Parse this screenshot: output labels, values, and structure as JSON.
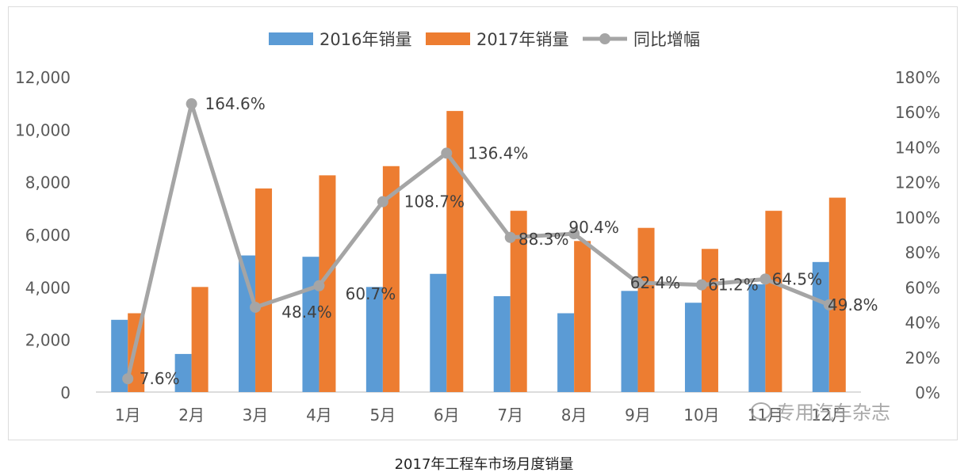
{
  "caption": "2017年工程车市场月度销量",
  "watermark": "专用汽车杂志",
  "chart_data": {
    "type": "bar",
    "categories": [
      "1月",
      "2月",
      "3月",
      "4月",
      "5月",
      "6月",
      "7月",
      "8月",
      "9月",
      "10月",
      "11月",
      "12月"
    ],
    "series": [
      {
        "name": "2016年销量",
        "type": "bar",
        "axis": "left",
        "color": "#5b9bd5",
        "values": [
          2750,
          1450,
          5200,
          5150,
          4000,
          4500,
          3650,
          3000,
          3850,
          3400,
          4100,
          4950
        ]
      },
      {
        "name": "2017年销量",
        "type": "bar",
        "axis": "left",
        "color": "#ed7d31",
        "values": [
          3000,
          4000,
          7750,
          8250,
          8600,
          10700,
          6900,
          5750,
          6250,
          5450,
          6900,
          7400
        ]
      },
      {
        "name": "同比增幅",
        "type": "line",
        "axis": "right",
        "color": "#a5a5a5",
        "values": [
          7.6,
          164.6,
          48.4,
          60.7,
          108.7,
          136.4,
          88.3,
          90.4,
          62.4,
          61.2,
          64.5,
          49.8
        ],
        "labels": [
          "7.6%",
          "164.6%",
          "48.4%",
          "60.7%",
          "108.7%",
          "136.4%",
          "88.3%",
          "90.4%",
          "62.4%",
          "61.2%",
          "64.5%",
          "49.8%"
        ]
      }
    ],
    "y_left": {
      "min": 0,
      "max": 12000,
      "ticks": [
        "0",
        "2,000",
        "4,000",
        "6,000",
        "8,000",
        "10,000",
        "12,000"
      ],
      "values": [
        0,
        2000,
        4000,
        6000,
        8000,
        10000,
        12000
      ]
    },
    "y_right": {
      "min": 0,
      "max": 180,
      "ticks": [
        "0%",
        "20%",
        "40%",
        "60%",
        "80%",
        "100%",
        "120%",
        "140%",
        "160%",
        "180%"
      ],
      "values": [
        0,
        20,
        40,
        60,
        80,
        100,
        120,
        140,
        160,
        180
      ]
    },
    "legend": {
      "position": "top"
    },
    "grid": false
  }
}
